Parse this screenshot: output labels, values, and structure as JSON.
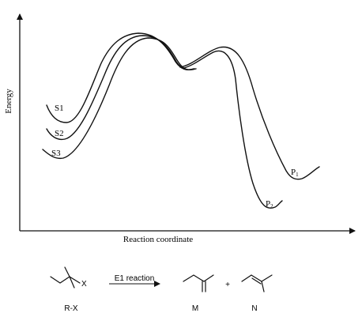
{
  "energy_diagram": {
    "y_axis_label": "Energy",
    "x_axis_label": "Reaction coordinate",
    "curve_labels": {
      "s1": "S1",
      "s2": "S2",
      "s3": "S3"
    },
    "product_labels": {
      "p1": {
        "letter": "P",
        "subscript": "1"
      },
      "p2": {
        "letter": "P",
        "subscript": "2"
      }
    }
  },
  "reaction_scheme": {
    "reactant_atom": "X",
    "reactant_label": "R-X",
    "arrow_label": "E1 reaction",
    "plus_sign": "+",
    "product_m_label": "M",
    "product_n_label": "N"
  }
}
